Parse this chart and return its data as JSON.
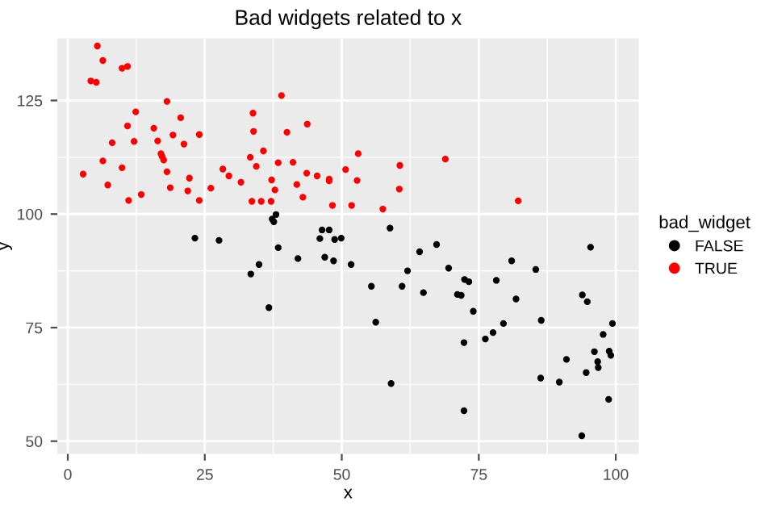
{
  "chart_data": {
    "type": "scatter",
    "title": "Bad widgets related to x",
    "xlabel": "x",
    "ylabel": "y",
    "legend_title": "bad_widget",
    "legend": "right",
    "grid": true,
    "marker": "circle",
    "xlim": [
      -1.9,
      104.2
    ],
    "ylim": [
      47.2,
      138.7
    ],
    "xticks": [
      0,
      25,
      50,
      75,
      100
    ],
    "yticks": [
      50,
      75,
      100,
      125
    ],
    "series": [
      {
        "name": "FALSE",
        "color": "#000000",
        "x": [
          23.2,
          27.6,
          38,
          37.3,
          37.6,
          38.4,
          34.9,
          42,
          46,
          46.4,
          47.7,
          46.9,
          48.5,
          48.7,
          33.4,
          36.7,
          49.9,
          58.8,
          64.2,
          67.3,
          81,
          95.4,
          51.7,
          69.5,
          85.4,
          55.4,
          61,
          62,
          64.9,
          72.4,
          73.2,
          78.2,
          71.1,
          71.8,
          81.8,
          93.9,
          94.8,
          56.2,
          74,
          79.5,
          77.6,
          76.2,
          86.4,
          72.3,
          99.4,
          97.7,
          96.1,
          98.8,
          99.1,
          96.7,
          96.8,
          91,
          94.6,
          86.3,
          89.7,
          59,
          98.7,
          72.3,
          93.8
        ],
        "values": [
          94.7,
          94.2,
          99.9,
          98.9,
          98.3,
          92.6,
          88.9,
          90.2,
          94.6,
          96.5,
          96.5,
          90.5,
          89.7,
          94.4,
          86.8,
          79.4,
          94.7,
          96.9,
          91.7,
          93.3,
          89.7,
          92.7,
          88.9,
          88.1,
          87.8,
          84.1,
          84.1,
          87.5,
          82.7,
          85.6,
          85.1,
          85.4,
          82.3,
          82.1,
          81.3,
          82.2,
          80.7,
          76.2,
          78.6,
          75.9,
          73.9,
          72.5,
          76.6,
          71.7,
          75.9,
          73.5,
          69.7,
          69.8,
          68.9,
          67.5,
          66.2,
          68,
          65.1,
          63.9,
          63,
          62.7,
          59.2,
          56.7,
          51.2
        ]
      },
      {
        "name": "TRUE",
        "color": "#ff0000",
        "x": [
          2.8,
          5.4,
          6.4,
          4.2,
          5.2,
          9.9,
          10.9,
          6.4,
          7.3,
          8.1,
          9.9,
          11.1,
          10.9,
          12.4,
          12.1,
          13.4,
          15.7,
          16.4,
          18.1,
          17,
          17.2,
          17.5,
          18.1,
          18.7,
          19.2,
          20.6,
          21.2,
          21.9,
          22.2,
          24,
          24,
          26.1,
          28.3,
          29.4,
          31.6,
          33.3,
          33.6,
          33.8,
          33.9,
          34.4,
          35.3,
          35.7,
          37.1,
          37.2,
          37.8,
          38.4,
          39,
          40,
          41.1,
          41.8,
          42.9,
          43.7,
          43.6,
          45.5,
          47.7,
          47.7,
          48.3,
          53,
          50.7,
          52.8,
          51.8,
          60.6,
          60.5,
          57.5,
          68.9,
          82.2
        ],
        "values": [
          108.8,
          137,
          133.8,
          129.3,
          129,
          132.1,
          132.5,
          111.7,
          106.4,
          115.7,
          110.2,
          103,
          119.4,
          122.5,
          116,
          104.3,
          118.9,
          116.1,
          124.8,
          113.3,
          112.7,
          111.9,
          109.3,
          105.8,
          117.4,
          121.2,
          115.4,
          105.1,
          107.9,
          117.5,
          103,
          105.7,
          109.9,
          108.4,
          107,
          112.5,
          102.8,
          122.2,
          118.2,
          110.5,
          102.8,
          113.9,
          102.8,
          107.5,
          105.3,
          111.3,
          126.1,
          118,
          111.4,
          106.5,
          103.7,
          119.8,
          109,
          108.4,
          107.7,
          107.3,
          101.9,
          113.3,
          109.8,
          107.4,
          101.9,
          110.7,
          105.5,
          101.1,
          112.1,
          102.9
        ]
      }
    ]
  }
}
